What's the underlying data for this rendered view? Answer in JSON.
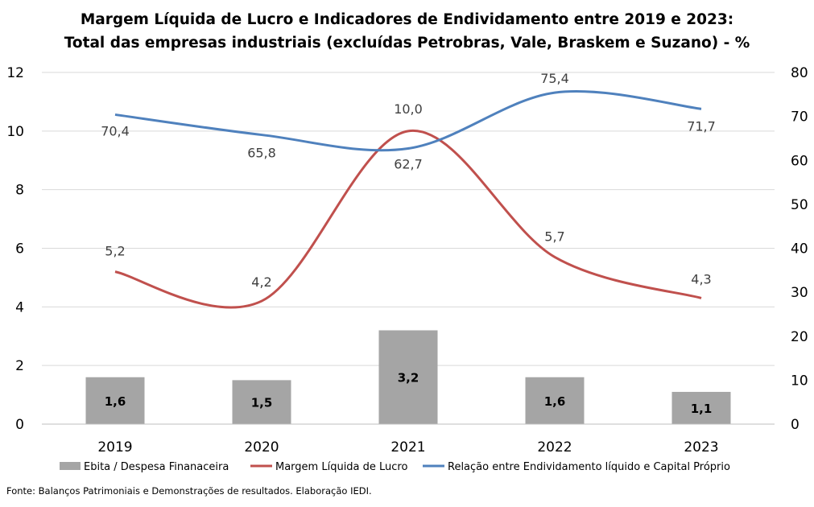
{
  "title_line1": "Margem Líquida de Lucro e Indicadores de Endividamento entre 2019 e 2023:",
  "title_line2": "Total das empresas industriais (excluídas Petrobras, Vale, Braskem e Suzano) - %",
  "source": "Fonte: Balanços Patrimoniais e Demonstrações de resultados. Elaboração IEDI.",
  "colors": {
    "bars": "#a5a5a5",
    "margem": "#c0504d",
    "relacao": "#4f81bd",
    "grid": "#d9d9d9"
  },
  "chart_data": {
    "type": "bar",
    "categories": [
      "2019",
      "2020",
      "2021",
      "2022",
      "2023"
    ],
    "ylim_left": [
      0,
      12
    ],
    "yticks_left": [
      0,
      2,
      4,
      6,
      8,
      10,
      12
    ],
    "ylim_right": [
      0,
      80
    ],
    "yticks_right": [
      0,
      10,
      20,
      30,
      40,
      50,
      60,
      70,
      80
    ],
    "grid": true,
    "legend_position": "bottom",
    "series": [
      {
        "name": "Ebita / Despesa Finanaceira",
        "type": "bar",
        "axis": "left",
        "values": [
          1.6,
          1.5,
          3.2,
          1.6,
          1.1
        ],
        "labels": [
          "1,6",
          "1,5",
          "3,2",
          "1,6",
          "1,1"
        ]
      },
      {
        "name": "Margem Líquida de Lucro",
        "type": "line",
        "axis": "right",
        "values": [
          5.2,
          4.2,
          10.0,
          5.7,
          4.3
        ],
        "labels": [
          "5,2",
          "4,2",
          "10,0",
          "5,7",
          "4,3"
        ]
      },
      {
        "name": "Relação entre Endividamento líquido e Capital Próprio",
        "type": "line",
        "axis": "right",
        "values": [
          70.4,
          65.8,
          62.7,
          75.4,
          71.7
        ],
        "labels": [
          "70,4",
          "65,8",
          "62,7",
          "75,4",
          "71,7"
        ]
      }
    ]
  }
}
